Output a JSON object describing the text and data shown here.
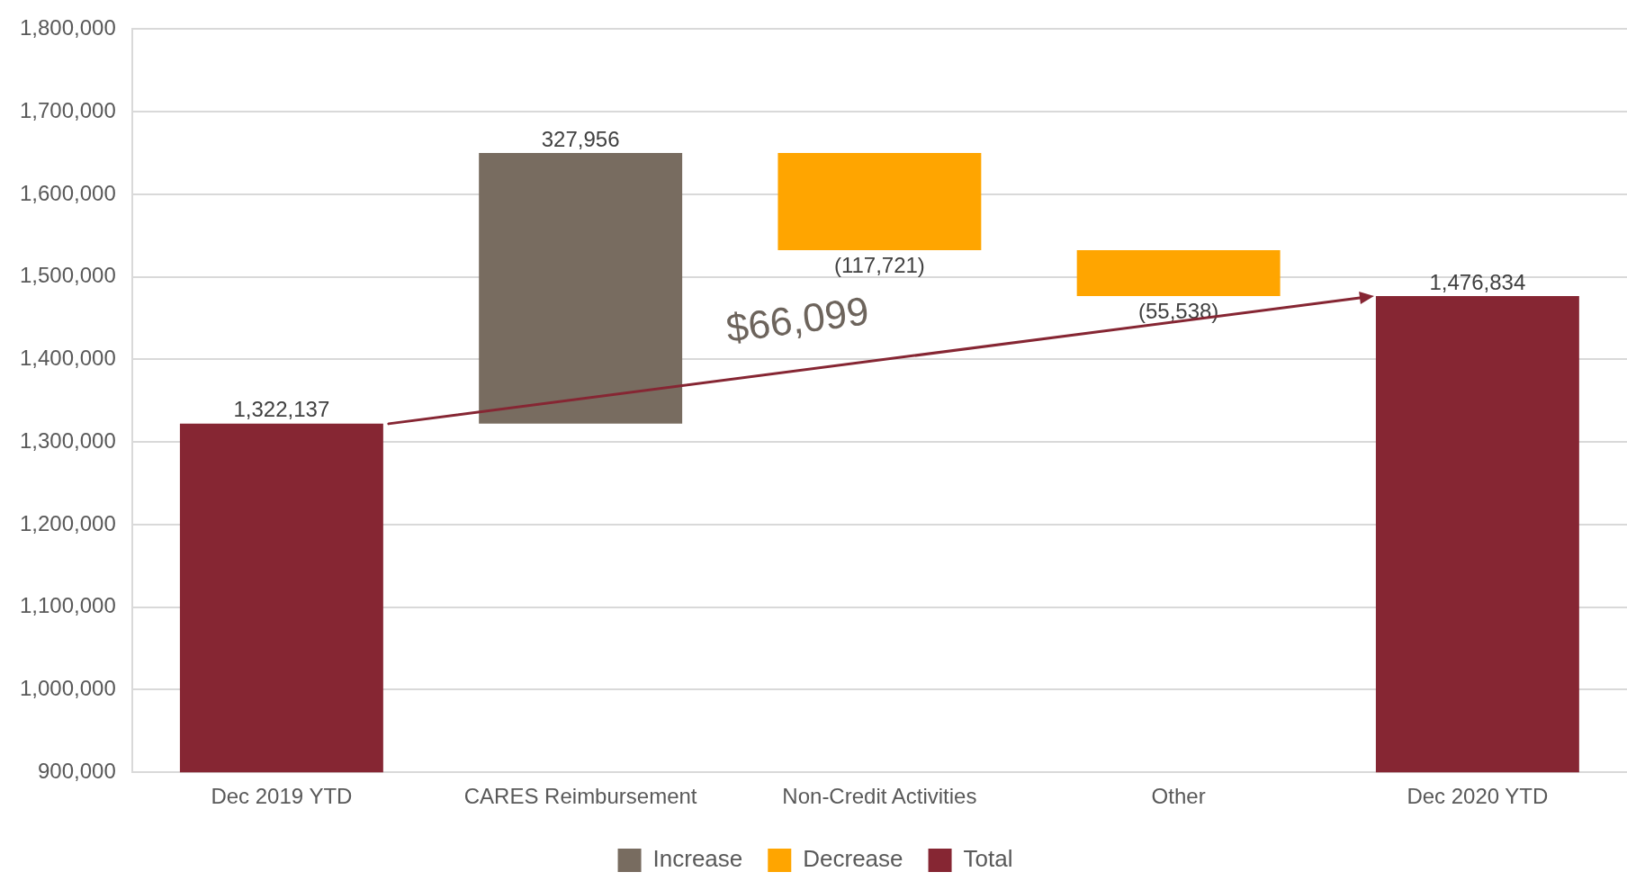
{
  "chart_data": {
    "type": "bar",
    "categories": [
      "Dec 2019 YTD",
      "CARES Reimbursement",
      "Non-Credit Activities",
      "Other",
      "Dec 2020 YTD"
    ],
    "series": [
      {
        "name": "Increase",
        "color": "#786c60",
        "values": [
          null,
          327956,
          null,
          null,
          null
        ],
        "base": [
          null,
          1322137,
          null,
          null,
          null
        ],
        "value_labels": [
          null,
          "327,956",
          null,
          null,
          null
        ]
      },
      {
        "name": "Decrease",
        "color": "#ffa500",
        "values": [
          null,
          null,
          -117721,
          -55538,
          null
        ],
        "base": [
          null,
          null,
          1650093,
          1532372,
          null
        ],
        "value_labels": [
          null,
          null,
          "(117,721)",
          "(55,538)",
          null
        ]
      },
      {
        "name": "Total",
        "color": "#862633",
        "values": [
          1322137,
          null,
          null,
          null,
          1476834
        ],
        "value_labels": [
          "1,322,137",
          null,
          null,
          null,
          "1,476,834"
        ]
      }
    ],
    "annotations": [
      "$66,099"
    ],
    "ylim": [
      900000,
      1800000
    ],
    "yticks": [
      {
        "value": 900000,
        "label": "900,000"
      },
      {
        "value": 1000000,
        "label": "1,000,000"
      },
      {
        "value": 1100000,
        "label": "1,100,000"
      },
      {
        "value": 1200000,
        "label": "1,200,000"
      },
      {
        "value": 1300000,
        "label": "1,300,000"
      },
      {
        "value": 1400000,
        "label": "1,400,000"
      },
      {
        "value": 1500000,
        "label": "1,500,000"
      },
      {
        "value": 1600000,
        "label": "1,600,000"
      },
      {
        "value": 1700000,
        "label": "1,700,000"
      },
      {
        "value": 1800000,
        "label": "1,800,000"
      }
    ],
    "grid": "y",
    "legend": "bottom"
  }
}
